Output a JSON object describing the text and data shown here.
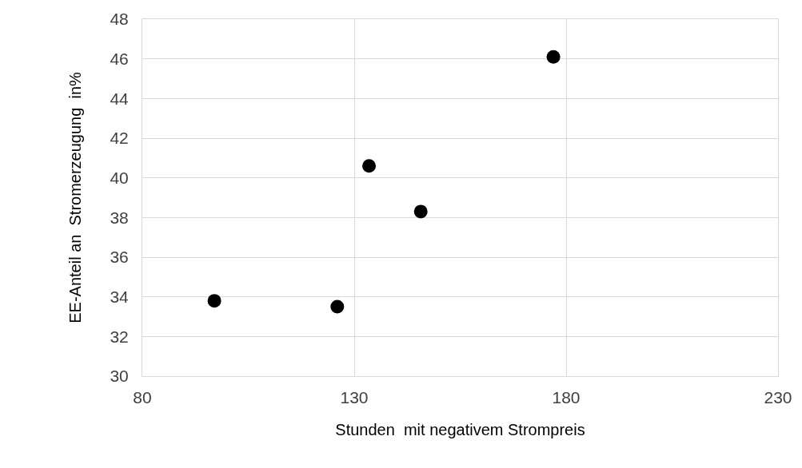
{
  "chart_data": {
    "type": "scatter",
    "xlabel": "Stunden  mit negativem Strompreis",
    "ylabel": "EE-Anteil an  Stromerzeugung  in%",
    "x": [
      97,
      126,
      133.5,
      145.7,
      177
    ],
    "values": [
      33.8,
      33.5,
      40.6,
      38.3,
      46.1
    ],
    "color": "#000000",
    "marker": "circle",
    "xlim": [
      80,
      230
    ],
    "xticks": [
      80,
      130,
      180,
      230
    ],
    "ylim": [
      30,
      48
    ],
    "yticks": [
      30,
      32,
      34,
      36,
      38,
      40,
      42,
      44,
      46,
      48
    ],
    "grid": true
  }
}
